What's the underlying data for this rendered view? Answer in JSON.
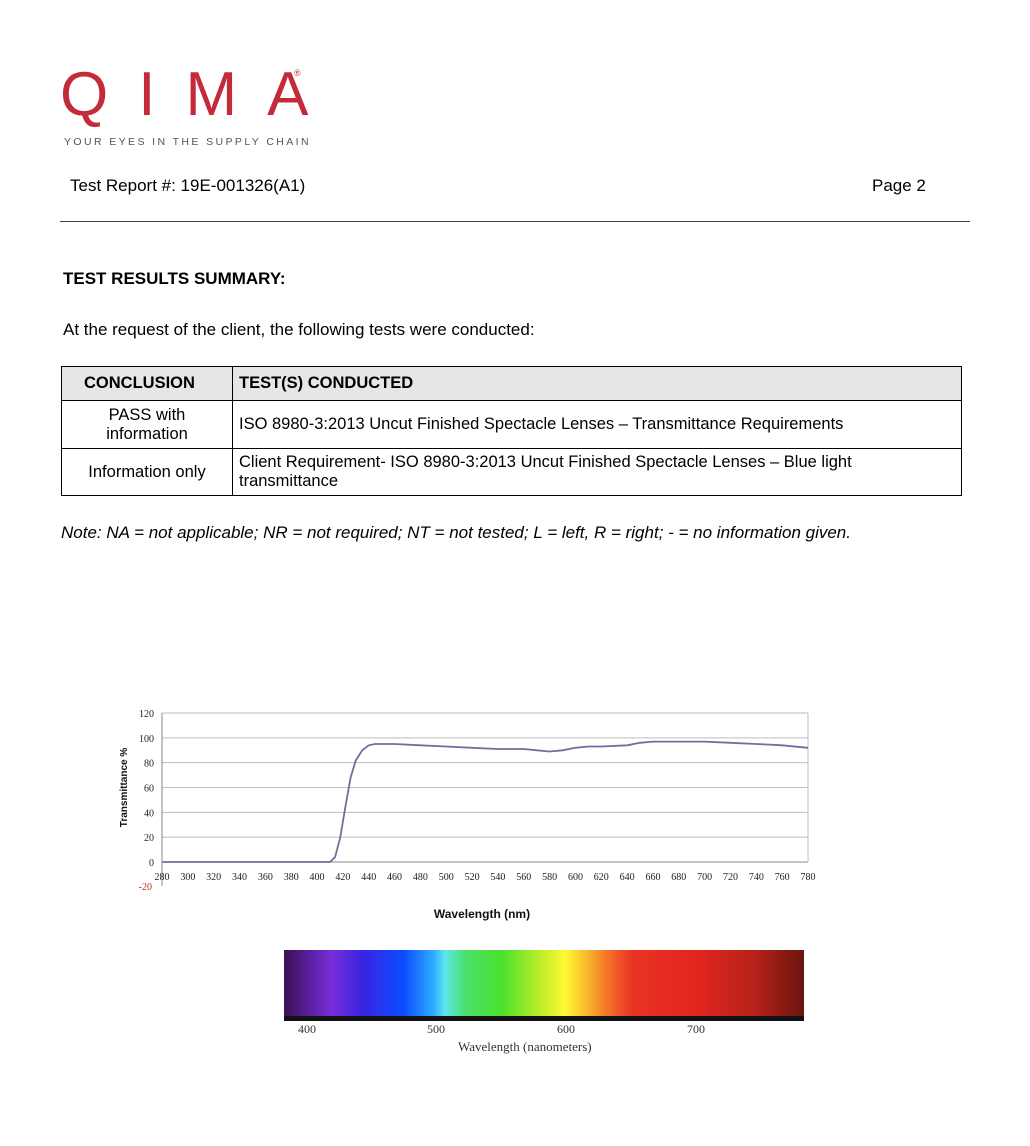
{
  "header": {
    "logo_text": "QIMA",
    "logo_mark": "®",
    "tagline": "YOUR EYES IN THE SUPPLY CHAIN",
    "report_number": "Test Report #: 19E-001326(A1)",
    "page_label": "Page 2",
    "brand_color": "#c42b3a"
  },
  "summary": {
    "title": "TEST RESULTS SUMMARY:",
    "intro": "At the request of the client, the following tests were conducted:",
    "columns": [
      "CONCLUSION",
      "TEST(S) CONDUCTED"
    ],
    "rows": [
      {
        "conclusion": "PASS with information",
        "test": "ISO 8980-3:2013 Uncut Finished Spectacle Lenses – Transmittance Requirements"
      },
      {
        "conclusion": "Information only",
        "test": "Client Requirement- ISO 8980-3:2013 Uncut Finished Spectacle Lenses – Blue light transmittance"
      }
    ],
    "note": "Note: NA = not applicable; NR = not required; NT = not tested; L = left, R = right; - = no information given."
  },
  "chart_data": {
    "type": "line",
    "title": "",
    "xlabel": "Wavelength (nm)",
    "ylabel": "Transmittance %",
    "xlim": [
      280,
      780
    ],
    "ylim": [
      0,
      120
    ],
    "x_ticks": [
      280,
      300,
      320,
      340,
      360,
      380,
      400,
      420,
      440,
      460,
      480,
      500,
      520,
      540,
      560,
      580,
      600,
      620,
      640,
      660,
      680,
      700,
      720,
      740,
      760,
      780
    ],
    "y_ticks": [
      0,
      20,
      40,
      60,
      80,
      100,
      120
    ],
    "extra_y_label": "-20",
    "grid": true,
    "series": [
      {
        "name": "Transmittance",
        "color": "#6f6f9e",
        "x": [
          280,
          300,
          320,
          340,
          360,
          380,
          400,
          410,
          414,
          418,
          422,
          426,
          430,
          435,
          440,
          445,
          450,
          460,
          480,
          500,
          520,
          540,
          560,
          570,
          580,
          590,
          600,
          610,
          620,
          640,
          650,
          660,
          680,
          700,
          720,
          740,
          760,
          780
        ],
        "y": [
          0,
          0,
          0,
          0,
          0,
          0,
          0,
          0,
          4,
          20,
          45,
          68,
          82,
          90,
          94,
          95,
          95,
          95,
          94,
          93,
          92,
          91,
          91,
          90,
          89,
          90,
          92,
          93,
          93,
          94,
          96,
          97,
          97,
          97,
          96,
          95,
          94,
          92
        ]
      }
    ]
  },
  "spectrum": {
    "ticks": [
      "400",
      "500",
      "600",
      "700"
    ],
    "label": "Wavelength (nanometers)"
  }
}
